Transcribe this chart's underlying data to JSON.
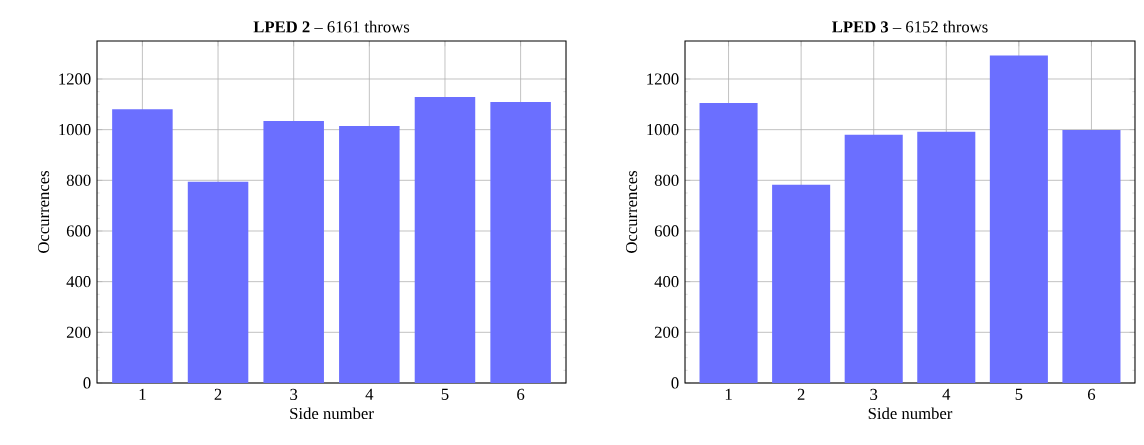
{
  "chart_data": [
    {
      "type": "bar",
      "title": "**LPED 2** – 6161 throws",
      "xlabel": "Side number",
      "ylabel": "Occurrences",
      "categories": [
        "1",
        "2",
        "3",
        "4",
        "5",
        "6"
      ],
      "values": [
        1081,
        794,
        1034,
        1014,
        1129,
        1109
      ],
      "color": "#6b6fff",
      "ylim": [
        0,
        1350
      ],
      "yticks": [
        0,
        200,
        400,
        600,
        800,
        1000,
        1200
      ],
      "grid": true
    },
    {
      "type": "bar",
      "title": "**LPED 3** – 6152 throws",
      "xlabel": "Side number",
      "ylabel": "Occurrences",
      "categories": [
        "1",
        "2",
        "3",
        "4",
        "5",
        "6"
      ],
      "values": [
        1105,
        783,
        980,
        992,
        1293,
        999
      ],
      "color": "#6b6fff",
      "ylim": [
        0,
        1350
      ],
      "yticks": [
        0,
        200,
        400,
        600,
        800,
        1000,
        1200
      ],
      "grid": true
    }
  ]
}
